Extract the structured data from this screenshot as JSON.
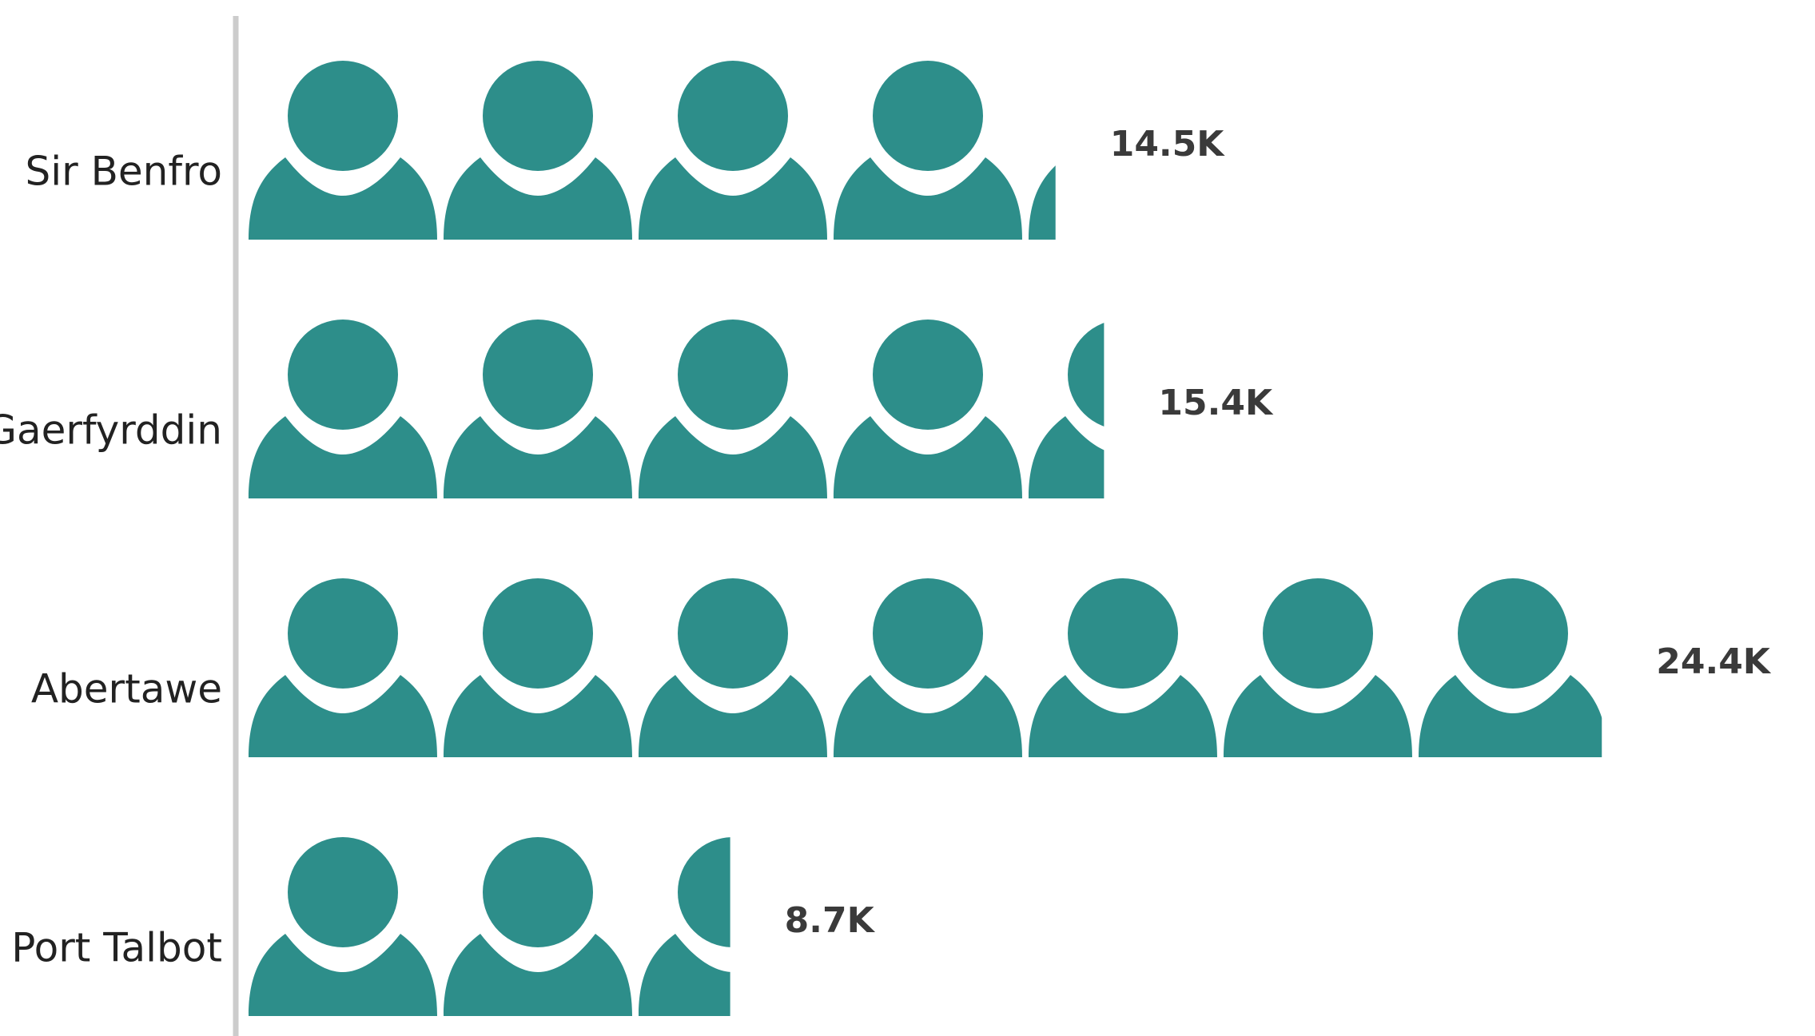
{
  "chart_data": {
    "type": "bar",
    "subtype": "pictograph",
    "orientation": "horizontal",
    "icon": "person-icon",
    "units_per_icon": 3500,
    "categories": [
      "Sir Benfro",
      "Gaerfyrddin",
      "Abertawe",
      "Port Talbot"
    ],
    "values": [
      14500,
      15400,
      24400,
      8700
    ],
    "data_labels": [
      "14.5K",
      "15.4K",
      "24.4K",
      "8.7K"
    ],
    "colors": {
      "icon": "#2D8E8A",
      "axis": "#CCCCCC",
      "category_text": "#222222",
      "value_text": "#3A3A3A"
    }
  }
}
